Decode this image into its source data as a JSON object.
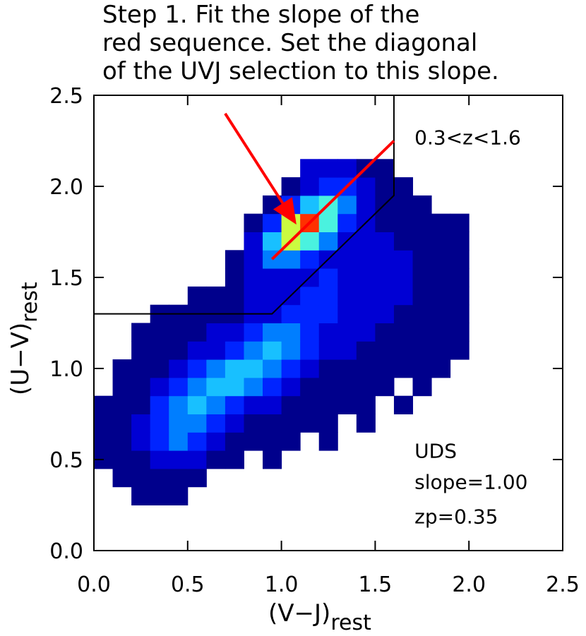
{
  "chart_data": {
    "type": "heatmap",
    "title": [
      "Step 1. Fit the slope of the",
      "red sequence. Set the diagonal",
      "of the UVJ selection to this slope."
    ],
    "xlabel": "(V−J)",
    "xlabel_sub": "rest",
    "ylabel": "(U−V)",
    "ylabel_sub": "rest",
    "xlim": [
      0,
      2.5
    ],
    "ylim": [
      0,
      2.5
    ],
    "xticks": [
      {
        "value": 0,
        "label": "0.0"
      },
      {
        "value": 0.5,
        "label": "0.5"
      },
      {
        "value": 1,
        "label": "1.0"
      },
      {
        "value": 1.5,
        "label": "1.5"
      },
      {
        "value": 2,
        "label": "2.0"
      },
      {
        "value": 2.5,
        "label": "2.5"
      }
    ],
    "yticks": [
      {
        "value": 0,
        "label": "0.0"
      },
      {
        "value": 0.5,
        "label": "0.5"
      },
      {
        "value": 1,
        "label": "1.0"
      },
      {
        "value": 1.5,
        "label": "1.5"
      },
      {
        "value": 2,
        "label": "2.0"
      },
      {
        "value": 2.5,
        "label": "2.5"
      }
    ],
    "xbins": [
      0,
      0.1,
      0.2,
      0.3,
      0.4,
      0.5,
      0.6,
      0.7,
      0.8,
      0.9,
      1.0,
      1.1,
      1.2,
      1.3,
      1.4,
      1.5,
      1.6,
      1.7,
      1.8,
      1.9,
      2.0
    ],
    "ybins": [
      0.25,
      0.35,
      0.45,
      0.55,
      0.65,
      0.75,
      0.85,
      0.95,
      1.05,
      1.15,
      1.25,
      1.35,
      1.45,
      1.55,
      1.65,
      1.75,
      1.85,
      1.95,
      2.05,
      2.15
    ],
    "z": [
      [
        null,
        null,
        1,
        1,
        1,
        null,
        null,
        null,
        null,
        null,
        null,
        null,
        null,
        null,
        null,
        null,
        null,
        null,
        null,
        null
      ],
      [
        null,
        1,
        1,
        1,
        1,
        1,
        null,
        null,
        null,
        null,
        null,
        null,
        null,
        null,
        null,
        null,
        null,
        null,
        null,
        null
      ],
      [
        1,
        1,
        1,
        2,
        2,
        2,
        1,
        1,
        null,
        1,
        null,
        null,
        null,
        null,
        null,
        null,
        null,
        null,
        null,
        null
      ],
      [
        1,
        1,
        2,
        3,
        4,
        3,
        2,
        1,
        1,
        1,
        1,
        null,
        1,
        null,
        null,
        null,
        null,
        null,
        null,
        null
      ],
      [
        1,
        1,
        2,
        3,
        4,
        4,
        3,
        2,
        1,
        1,
        1,
        1,
        1,
        null,
        1,
        null,
        null,
        null,
        null,
        null
      ],
      [
        1,
        1,
        1,
        3,
        4,
        5,
        4,
        3,
        2,
        2,
        1,
        1,
        1,
        1,
        1,
        null,
        1,
        null,
        null,
        null
      ],
      [
        null,
        1,
        1,
        2,
        3,
        4,
        5,
        5,
        4,
        3,
        2,
        1,
        1,
        1,
        1,
        1,
        null,
        1,
        null,
        null
      ],
      [
        null,
        1,
        1,
        1,
        2,
        3,
        4,
        5,
        5,
        4,
        3,
        2,
        1,
        1,
        1,
        1,
        1,
        1,
        1,
        null
      ],
      [
        null,
        null,
        1,
        1,
        1,
        2,
        2,
        3,
        4,
        5,
        4,
        3,
        2,
        2,
        1,
        1,
        1,
        1,
        1,
        1
      ],
      [
        null,
        null,
        1,
        1,
        1,
        1,
        2,
        2,
        3,
        4,
        4,
        3,
        2,
        2,
        2,
        1,
        1,
        1,
        1,
        1
      ],
      [
        null,
        null,
        null,
        1,
        1,
        1,
        1,
        1,
        2,
        2,
        3,
        3,
        3,
        2,
        2,
        2,
        1,
        1,
        1,
        1
      ],
      [
        null,
        null,
        null,
        null,
        null,
        1,
        1,
        1,
        2,
        2,
        2,
        3,
        3,
        2,
        2,
        2,
        2,
        1,
        1,
        1
      ],
      [
        null,
        null,
        null,
        null,
        null,
        null,
        null,
        1,
        2,
        2,
        2,
        2,
        3,
        2,
        2,
        2,
        2,
        1,
        1,
        1
      ],
      [
        null,
        null,
        null,
        null,
        null,
        null,
        null,
        1,
        2,
        4,
        4,
        3,
        2,
        2,
        2,
        2,
        2,
        1,
        1,
        1
      ],
      [
        null,
        null,
        null,
        null,
        null,
        null,
        null,
        null,
        2,
        5,
        7,
        6,
        4,
        2,
        2,
        2,
        1,
        1,
        1,
        1
      ],
      [
        null,
        null,
        null,
        null,
        null,
        null,
        null,
        null,
        1,
        3,
        7,
        9,
        6,
        3,
        2,
        1,
        1,
        1,
        1,
        1
      ],
      [
        null,
        null,
        null,
        null,
        null,
        null,
        null,
        null,
        null,
        1,
        3,
        5,
        6,
        4,
        2,
        1,
        1,
        1,
        null,
        null
      ],
      [
        null,
        null,
        null,
        null,
        null,
        null,
        null,
        null,
        null,
        null,
        1,
        2,
        3,
        3,
        2,
        1,
        1,
        null,
        null,
        null
      ],
      [
        null,
        null,
        null,
        null,
        null,
        null,
        null,
        null,
        null,
        null,
        null,
        2,
        2,
        2,
        1,
        1,
        null,
        null,
        null,
        null
      ]
    ],
    "clim": [
      1,
      9
    ],
    "colormap": [
      "#00008c",
      "#0000ff",
      "#0090ff",
      "#30f0ff",
      "#ffff00",
      "#ff3000"
    ],
    "lines": [
      {
        "x": [
          0,
          0.95,
          1.6,
          1.6
        ],
        "y": [
          1.3,
          1.3,
          1.95,
          2.5
        ],
        "color": "#000000"
      },
      {
        "x": [
          0.95,
          1.6
        ],
        "y": [
          1.6,
          2.25
        ],
        "color": "#ff0000"
      }
    ],
    "arrow": {
      "x": [
        0.7,
        1.08
      ],
      "y": [
        2.4,
        1.79
      ],
      "color": "#ff0000"
    },
    "annotations": [
      {
        "text": "0.3<z<1.6",
        "x": 1.71,
        "y": 2.23
      },
      {
        "text": "UDS",
        "x": 1.71,
        "y": 0.51
      },
      {
        "text": "slope=1.00",
        "x": 1.71,
        "y": 0.34
      },
      {
        "text": "zp=0.35",
        "x": 1.71,
        "y": 0.15
      }
    ]
  }
}
